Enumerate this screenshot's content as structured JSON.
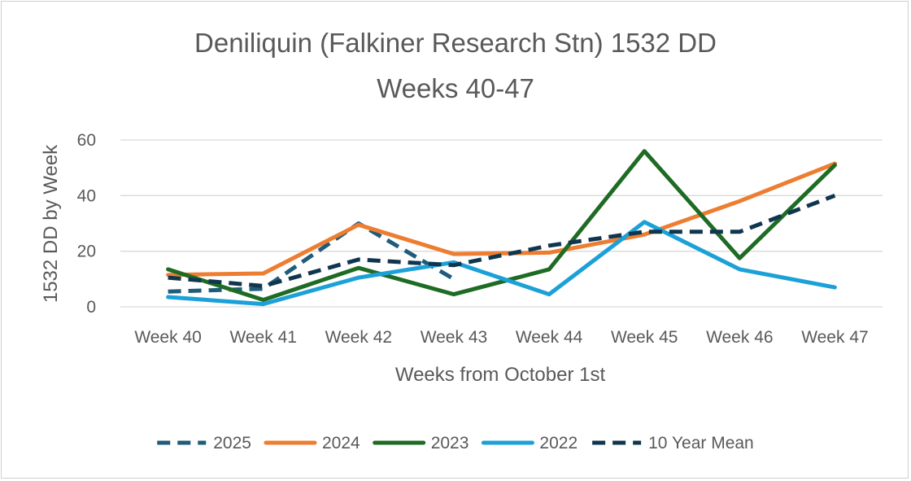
{
  "chart_data": {
    "type": "line",
    "title": "Deniliquin (Falkiner Research Stn) 1532 DD",
    "subtitle": "Weeks 40-47",
    "xlabel": "Weeks from October 1st",
    "ylabel": "1532 DD by Week",
    "ylim": [
      0,
      60
    ],
    "yticks": [
      0,
      20,
      40,
      60
    ],
    "categories": [
      "Week 40",
      "Week 41",
      "Week 42",
      "Week 43",
      "Week 44",
      "Week 45",
      "Week 46",
      "Week 47"
    ],
    "grid": true,
    "legend": "bottom",
    "series": [
      {
        "name": "2025",
        "color": "#1f5c7a",
        "dash": "dashed",
        "values": [
          5.5,
          6.5,
          30,
          10,
          null,
          null,
          null,
          null
        ]
      },
      {
        "name": "2024",
        "color": "#ed7d31",
        "dash": "solid",
        "values": [
          11.5,
          12,
          29.5,
          19,
          19.5,
          26,
          38,
          51.5
        ]
      },
      {
        "name": "2023",
        "color": "#1e6b24",
        "dash": "solid",
        "values": [
          13.5,
          2.5,
          14,
          4.5,
          13.5,
          56,
          17.5,
          51
        ]
      },
      {
        "name": "2022",
        "color": "#1ca0d8",
        "dash": "solid",
        "values": [
          3.5,
          1,
          10.5,
          16,
          4.5,
          30.5,
          13.5,
          7
        ]
      },
      {
        "name": "10 Year Mean",
        "color": "#10364f",
        "dash": "dashed",
        "values": [
          10.5,
          7.5,
          17,
          15,
          22,
          27,
          27,
          40
        ]
      }
    ]
  }
}
